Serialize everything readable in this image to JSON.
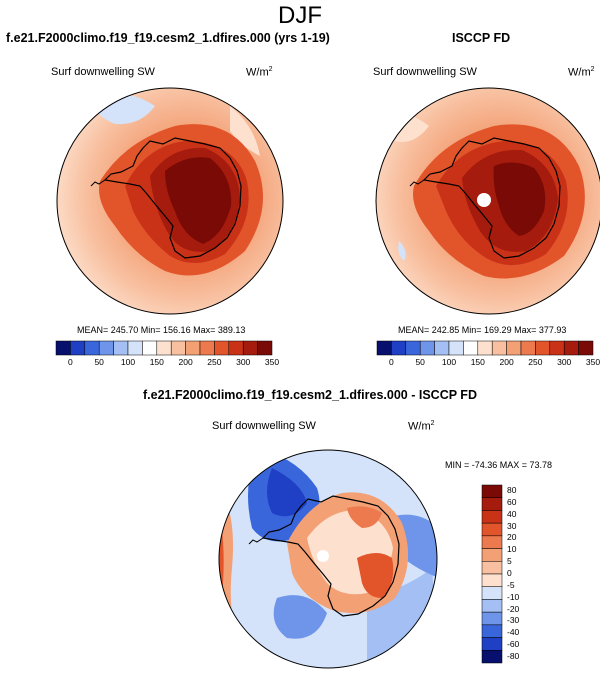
{
  "figure": {
    "season": "DJF"
  },
  "panels": [
    {
      "title": "f.e21.F2000climo.f19_f19.cesm2_1.dfires.000 (yrs 1-19)",
      "variable": "Surf downwelling SW",
      "units": "W/m",
      "units_exp": "2",
      "stats": "MEAN= 245.70  Min= 156.16  Max= 389.13"
    },
    {
      "title": "ISCCP FD",
      "variable": "Surf downwelling SW",
      "units": "W/m",
      "units_exp": "2",
      "stats": "MEAN= 242.85  Min= 169.29  Max= 377.93"
    },
    {
      "title": "f.e21.F2000climo.f19_f19.cesm2_1.dfires.000 - ISCCP FD",
      "variable": "Surf downwelling SW",
      "units": "W/m",
      "units_exp": "2",
      "stats": "MIN = -74.36 MAX =  73.78"
    }
  ],
  "colorbar_abs": {
    "colors": [
      "#08106e",
      "#1f3fc4",
      "#3a66dc",
      "#6e95ea",
      "#a3bff3",
      "#d4e3fa",
      "#ffffff",
      "#fde0cd",
      "#f8c0a0",
      "#f3a075",
      "#ed7a4e",
      "#e2552b",
      "#c93217",
      "#a51b0d",
      "#7a0a05"
    ],
    "tick_labels": [
      "0",
      "50",
      "100",
      "150",
      "200",
      "250",
      "300",
      "350"
    ]
  },
  "colorbar_diff": {
    "colors": [
      "#7a0a05",
      "#a51b0d",
      "#c93217",
      "#e2552b",
      "#ed7a4e",
      "#f3a075",
      "#f8c0a0",
      "#fde0cd",
      "#d4e3fa",
      "#a3bff3",
      "#6e95ea",
      "#3a66dc",
      "#1f3fc4",
      "#08106e"
    ],
    "tick_labels": [
      "80",
      "60",
      "40",
      "30",
      "20",
      "10",
      "5",
      "0",
      "-5",
      "-10",
      "-20",
      "-30",
      "-40",
      "-60",
      "-80"
    ]
  }
}
